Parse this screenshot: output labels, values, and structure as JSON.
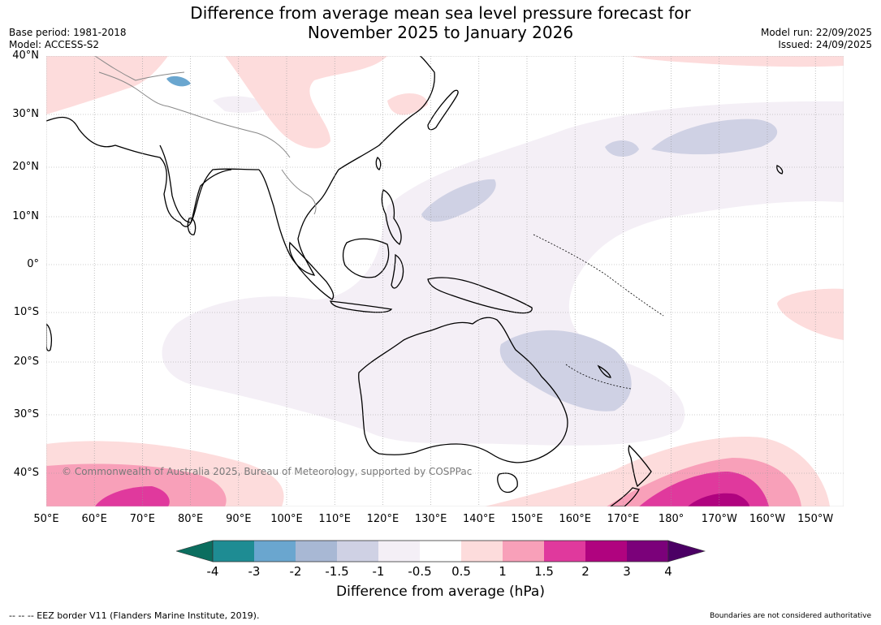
{
  "title": {
    "line1": "Difference from average mean sea level pressure forecast for",
    "line2": "November 2025 to January 2026"
  },
  "meta_left": {
    "base_period": "Base period: 1981-2018",
    "model": "Model: ACCESS-S2"
  },
  "meta_right": {
    "model_run": "Model run: 22/09/2025",
    "issued": "Issued: 24/09/2025"
  },
  "map": {
    "latitude_labels": [
      "40°N",
      "30°N",
      "20°N",
      "10°N",
      "0°",
      "10°S",
      "20°S",
      "30°S",
      "40°S"
    ],
    "longitude_labels": [
      "50°E",
      "60°E",
      "70°E",
      "80°E",
      "90°E",
      "100°E",
      "110°E",
      "120°E",
      "130°E",
      "140°E",
      "150°E",
      "160°E",
      "170°E",
      "180°",
      "170°W",
      "160°W",
      "150°W"
    ],
    "copyright": "© Commonwealth of Australia 2025, Bureau of Meteorology, supported by COSPPac"
  },
  "colorbar": {
    "tick_labels": [
      "-4",
      "-3",
      "-2",
      "-1.5",
      "-1",
      "-0.5",
      "0.5",
      "1",
      "1.5",
      "2",
      "3",
      "4"
    ],
    "colors": [
      "#1e8c93",
      "#6aa6cf",
      "#a8b8d4",
      "#cfd1e4",
      "#f4eff6",
      "#ffffff",
      "#fddcdc",
      "#f8a0b9",
      "#e0399d",
      "#b0037f",
      "#7b017a"
    ],
    "under_color": "#0b6e5f",
    "over_color": "#4b0064",
    "title": "Difference from average (hPa)"
  },
  "footer": {
    "eez_note": "--  --  -- EEZ border V11 (Flanders Marine Institute, 2019).",
    "disclaimer": "Boundaries are not considered authoritative"
  }
}
